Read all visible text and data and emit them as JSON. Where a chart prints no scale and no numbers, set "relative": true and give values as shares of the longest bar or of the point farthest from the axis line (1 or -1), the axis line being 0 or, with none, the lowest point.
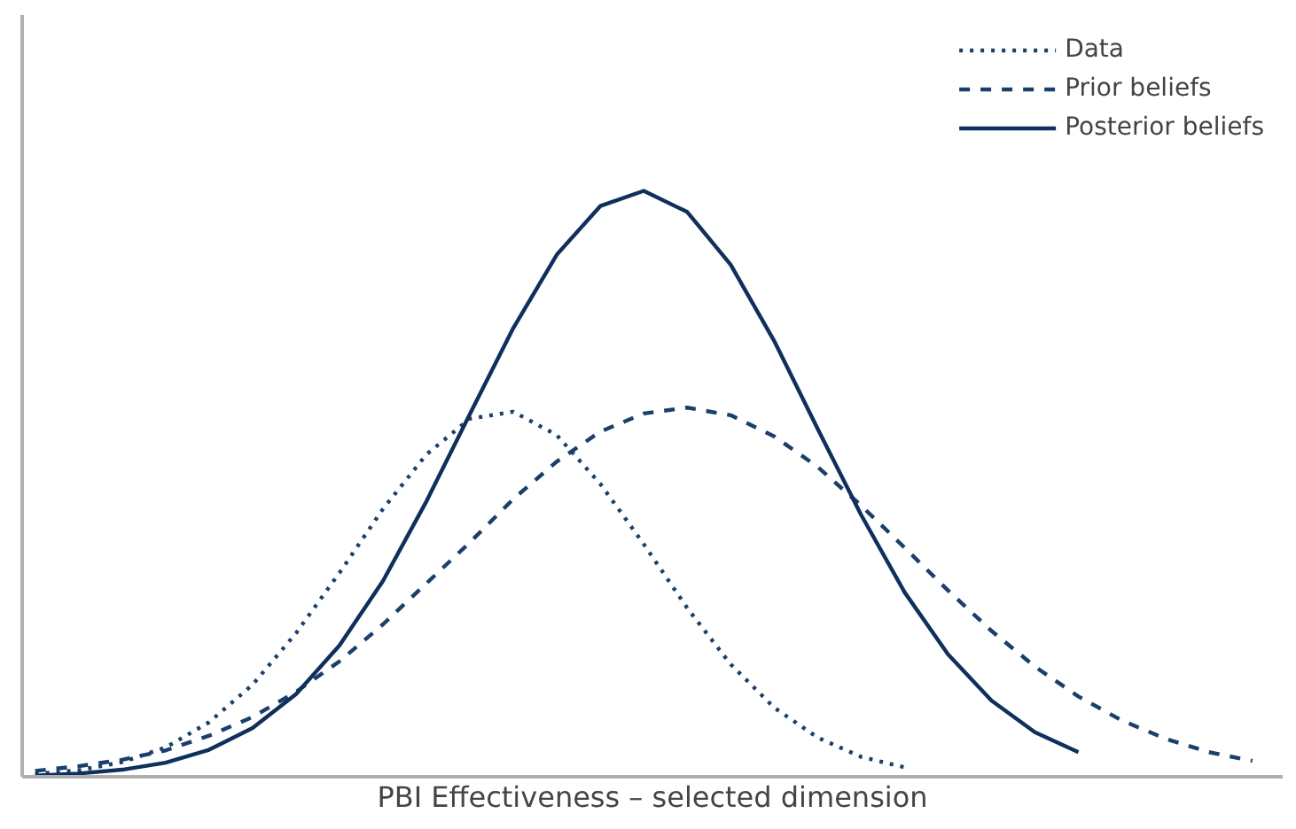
{
  "chart_data": {
    "type": "line",
    "relative": true,
    "xlabel": "PBI Effectiveness – selected dimension",
    "tick_labels": false,
    "legend": "top right",
    "categories": [
      null,
      null,
      null,
      null,
      null,
      null,
      null,
      null,
      null,
      null,
      null,
      null,
      null,
      null,
      null,
      null,
      null,
      null,
      null,
      null,
      null,
      null,
      null,
      null,
      null,
      null,
      null,
      null,
      null
    ],
    "series": [
      {
        "name": "Data",
        "color": "#1b3f6b",
        "line_style": "dotted",
        "values": [
          0.005,
          0.011,
          0.025,
          0.05,
          0.093,
          0.157,
          0.245,
          0.348,
          0.457,
          0.55,
          0.611,
          0.623,
          0.583,
          0.5,
          0.397,
          0.288,
          0.192,
          0.118,
          0.067,
          0.034,
          0.016,
          null,
          null,
          null,
          null,
          null,
          null,
          null,
          null
        ]
      },
      {
        "name": "Prior beliefs",
        "color": "#1b3f6b",
        "line_style": "dashed",
        "values": [
          0.01,
          0.018,
          0.029,
          0.045,
          0.07,
          0.102,
          0.145,
          0.197,
          0.26,
          0.33,
          0.4,
          0.474,
          0.538,
          0.589,
          0.62,
          0.63,
          0.617,
          0.581,
          0.529,
          0.463,
          0.391,
          0.318,
          0.249,
          0.188,
          0.137,
          0.096,
          0.065,
          0.042,
          0.027
        ]
      },
      {
        "name": "Posterior beliefs",
        "color": "#0f2f5c",
        "line_style": "solid",
        "values": [
          0.002,
          0.0055,
          0.012,
          0.024,
          0.046,
          0.083,
          0.141,
          0.224,
          0.334,
          0.47,
          0.619,
          0.766,
          0.891,
          0.974,
          1.0,
          0.964,
          0.874,
          0.744,
          0.594,
          0.447,
          0.315,
          0.209,
          0.13,
          0.076,
          0.042,
          null,
          null,
          null,
          null
        ]
      }
    ]
  }
}
